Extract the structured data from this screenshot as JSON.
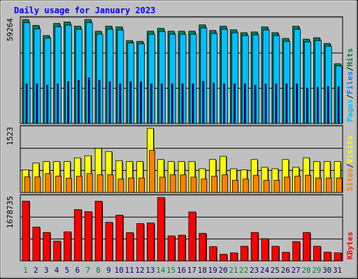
{
  "title": "Daily usage for January 2023",
  "colors": {
    "background": "#c0c0c0",
    "plot_bg": "#c0c0c0",
    "title": "#0000ff",
    "hits": "#008040",
    "files": "#0080ff",
    "pages": "#00c0ff",
    "hits_fill": "#00805c",
    "files_fill": "#00c0ff",
    "pages_fill": "#0000aa",
    "visits": "#ffff00",
    "sites": "#ff8000",
    "kbytes": "#ff0000",
    "weekday_label": "#008040",
    "day_label": "#000080"
  },
  "panels": {
    "top": {
      "max_label": "59264",
      "legend": [
        {
          "key": "pages",
          "text": "Pages"
        },
        {
          "key": "sep",
          "text": "/"
        },
        {
          "key": "files",
          "text": "Files"
        },
        {
          "key": "sep",
          "text": "/"
        },
        {
          "key": "hits",
          "text": "Hits"
        }
      ]
    },
    "middle": {
      "max_label": "1523",
      "legend": [
        {
          "key": "sites",
          "text": "Sites"
        },
        {
          "key": "sep",
          "text": "/"
        },
        {
          "key": "visits",
          "text": "Visits"
        }
      ]
    },
    "bottom": {
      "max_label": "1678735",
      "legend": [
        {
          "key": "kbytes",
          "text": "KBytes"
        }
      ]
    }
  },
  "chart_data": {
    "type": "bar",
    "title": "Daily usage for January 2023",
    "x": [
      "1",
      "2",
      "3",
      "4",
      "5",
      "6",
      "7",
      "8",
      "9",
      "10",
      "11",
      "12",
      "13",
      "14",
      "15",
      "16",
      "17",
      "18",
      "19",
      "20",
      "21",
      "22",
      "23",
      "24",
      "25",
      "26",
      "27",
      "28",
      "29",
      "30",
      "31"
    ],
    "weekend_days": [
      "1",
      "7",
      "8",
      "14",
      "15",
      "21",
      "22",
      "28",
      "29"
    ],
    "series": [
      {
        "name": "Hits",
        "panel": "top",
        "ymax": 59264,
        "values": [
          59264,
          55938,
          50129,
          57025,
          57848,
          55477,
          59264,
          52597,
          55477,
          55066,
          47249,
          46837,
          52597,
          54244,
          52597,
          52597,
          52597,
          56203,
          53009,
          55477,
          53420,
          51775,
          52186,
          55066,
          51775,
          48483,
          55477,
          48071,
          48894,
          45602,
          34081
        ]
      },
      {
        "name": "Files",
        "panel": "top",
        "ymax": 59264,
        "values": [
          57437,
          53901,
          48564,
          55145,
          56108,
          53740,
          57436,
          50890,
          53741,
          53310,
          45853,
          45386,
          50869,
          52457,
          50870,
          50864,
          50869,
          54448,
          51294,
          53742,
          51689,
          50129,
          50498,
          53301,
          50129,
          46853,
          53702,
          46488,
          47247,
          44069,
          32768
        ]
      },
      {
        "name": "Pages",
        "panel": "top",
        "ymax": 59264,
        "values": [
          22600,
          22600,
          21800,
          22600,
          23800,
          24600,
          26100,
          24600,
          23800,
          22600,
          23800,
          23800,
          22600,
          22600,
          22600,
          22600,
          22600,
          24000,
          23000,
          22600,
          22600,
          22600,
          21800,
          22600,
          22600,
          22600,
          22600,
          20200,
          20600,
          21000,
          21000
        ]
      },
      {
        "name": "Visits",
        "panel": "middle",
        "ymax": 1523,
        "values": [
          540,
          700,
          735,
          735,
          735,
          823,
          873,
          1048,
          972,
          757,
          735,
          735,
          1523,
          783,
          735,
          735,
          735,
          563,
          783,
          859,
          563,
          540,
          783,
          598,
          563,
          783,
          598,
          823,
          735,
          735,
          735
        ]
      },
      {
        "name": "Sites",
        "panel": "middle",
        "ymax": 1523,
        "values": [
          370,
          370,
          450,
          390,
          340,
          385,
          450,
          420,
          420,
          320,
          345,
          345,
          1000,
          365,
          420,
          420,
          365,
          320,
          385,
          420,
          290,
          320,
          410,
          290,
          290,
          365,
          390,
          410,
          345,
          345,
          345
        ]
      },
      {
        "name": "KBytes",
        "panel": "bottom",
        "ymax": 1678735,
        "values": [
          1579984,
          894470,
          751110,
          519425,
          769125,
          1356755,
          1302355,
          1576990,
          1018965,
          1209590,
          746295,
          986525,
          1001220,
          1678735,
          662165,
          680720,
          1293380,
          727605,
          377740,
          173930,
          212935,
          386495,
          751625,
          588255,
          386015,
          227070,
          511635,
          751110,
          386495,
          232220,
          212935
        ]
      }
    ]
  }
}
